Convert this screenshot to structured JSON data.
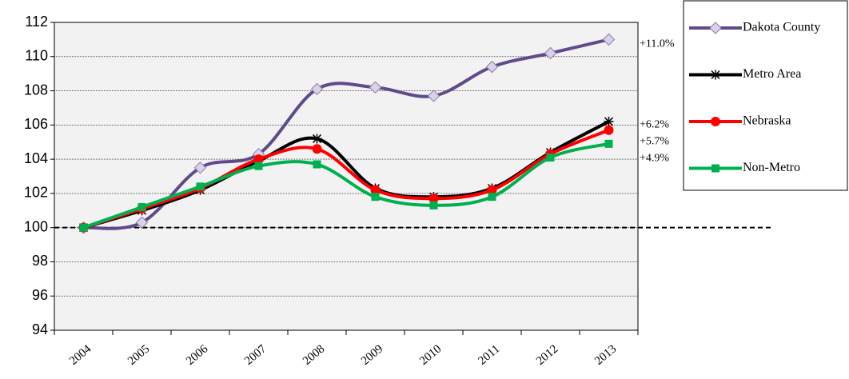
{
  "chart_data": {
    "type": "line",
    "categories": [
      "2004",
      "2005",
      "2006",
      "2007",
      "2008",
      "2009",
      "2010",
      "2011",
      "2012",
      "2013"
    ],
    "series": [
      {
        "name": "Dakota County",
        "color": "#5f4b8b",
        "marker": "diamond",
        "marker_fill": "#d9d2e9",
        "end_label": "+11.0%",
        "values": [
          100,
          100.3,
          103.5,
          104.3,
          108.1,
          108.2,
          107.7,
          109.4,
          110.2,
          111.0
        ]
      },
      {
        "name": "Metro Area",
        "color": "#000000",
        "marker": "asterisk",
        "marker_fill": "#000000",
        "end_label": "+6.2%",
        "values": [
          100,
          101.0,
          102.2,
          103.9,
          105.2,
          102.3,
          101.8,
          102.3,
          104.4,
          106.2
        ]
      },
      {
        "name": "Nebraska",
        "color": "#ff0000",
        "marker": "circle",
        "marker_fill": "#ff0000",
        "end_label": "+5.7%",
        "values": [
          100,
          101.1,
          102.3,
          104.0,
          104.6,
          102.2,
          101.7,
          102.2,
          104.3,
          105.7
        ]
      },
      {
        "name": "Non-Metro",
        "color": "#00b050",
        "marker": "square",
        "marker_fill": "#00b050",
        "end_label": "+4.9%",
        "values": [
          100,
          101.2,
          102.4,
          103.6,
          103.7,
          101.8,
          101.3,
          101.8,
          104.1,
          104.9
        ]
      }
    ],
    "ylim": [
      94,
      112
    ],
    "yticks": [
      94,
      96,
      98,
      100,
      102,
      104,
      106,
      108,
      110,
      112
    ],
    "grid": true,
    "reference_line": 100,
    "smooth": true,
    "legend": "right"
  }
}
